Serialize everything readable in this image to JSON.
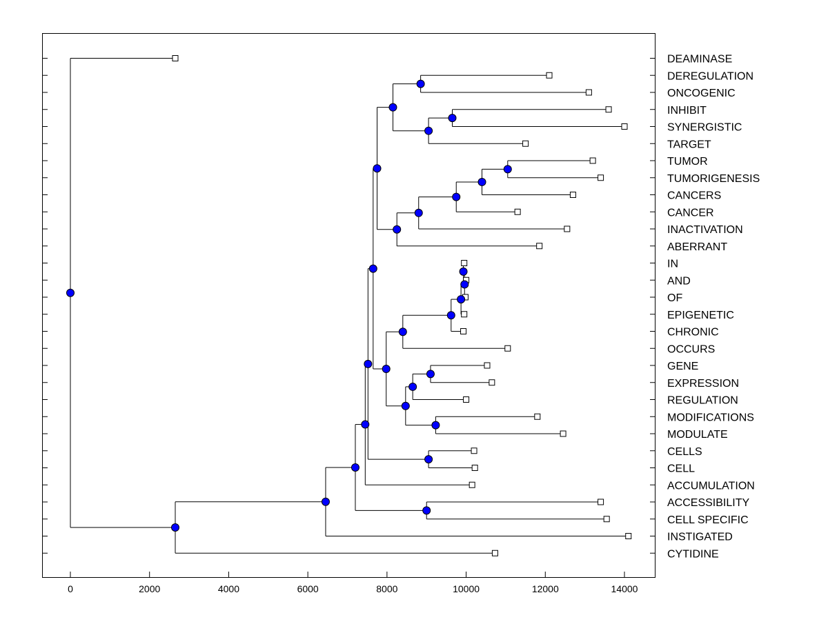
{
  "chart_data": {
    "type": "dendrogram",
    "title": "",
    "xlabel": "",
    "ylabel": "",
    "xlim": [
      -700,
      14800
    ],
    "x_ticks": [
      0,
      2000,
      4000,
      6000,
      8000,
      10000,
      12000,
      14000
    ],
    "x_tick_labels": [
      "0",
      "2000",
      "4000",
      "6000",
      "8000",
      "10000",
      "12000",
      "14000"
    ],
    "grid": false,
    "colors": {
      "node_fill": "#0000ff",
      "leaf_fill": "#ffffff",
      "line": "#000000"
    },
    "leaves": [
      {
        "label": "DEAMINASE",
        "x": 2650
      },
      {
        "label": "DEREGULATION",
        "x": 12100
      },
      {
        "label": "ONCOGENIC",
        "x": 13100
      },
      {
        "label": "INHIBIT",
        "x": 13600
      },
      {
        "label": "SYNERGISTIC",
        "x": 14000
      },
      {
        "label": "TARGET",
        "x": 11500
      },
      {
        "label": "TUMOR",
        "x": 13200
      },
      {
        "label": "TUMORIGENESIS",
        "x": 13400
      },
      {
        "label": "CANCERS",
        "x": 12700
      },
      {
        "label": "CANCER",
        "x": 11300
      },
      {
        "label": "INACTIVATION",
        "x": 12550
      },
      {
        "label": "ABERRANT",
        "x": 11850
      },
      {
        "label": "IN",
        "x": 9950
      },
      {
        "label": "AND",
        "x": 10000
      },
      {
        "label": "OF",
        "x": 9980
      },
      {
        "label": "EPIGENETIC",
        "x": 9950
      },
      {
        "label": "CHRONIC",
        "x": 9930
      },
      {
        "label": "OCCURS",
        "x": 11050
      },
      {
        "label": "GENE",
        "x": 10530
      },
      {
        "label": "EXPRESSION",
        "x": 10650
      },
      {
        "label": "REGULATION",
        "x": 10000
      },
      {
        "label": "MODIFICATIONS",
        "x": 11800
      },
      {
        "label": "MODULATE",
        "x": 12450
      },
      {
        "label": "CELLS",
        "x": 10200
      },
      {
        "label": "CELL",
        "x": 10220
      },
      {
        "label": "ACCUMULATION",
        "x": 10150
      },
      {
        "label": "ACCESSIBILITY",
        "x": 13400
      },
      {
        "label": "CELL SPECIFIC",
        "x": 13550
      },
      {
        "label": "INSTIGATED",
        "x": 14100
      },
      {
        "label": "CYTIDINE",
        "x": 10730
      }
    ],
    "nodes": [
      {
        "id": "n1",
        "x": 8850,
        "children": [
          "L1",
          "L2"
        ]
      },
      {
        "id": "n2",
        "x": 9650,
        "children": [
          "L3",
          "L4"
        ]
      },
      {
        "id": "n3",
        "x": 9050,
        "children": [
          "n2",
          "L5"
        ]
      },
      {
        "id": "n4",
        "x": 8150,
        "children": [
          "n1",
          "n3"
        ]
      },
      {
        "id": "n5",
        "x": 11050,
        "children": [
          "L6",
          "L7"
        ]
      },
      {
        "id": "n6",
        "x": 10400,
        "children": [
          "n5",
          "L8"
        ]
      },
      {
        "id": "n7",
        "x": 9750,
        "children": [
          "n6",
          "L9"
        ]
      },
      {
        "id": "n8",
        "x": 8800,
        "children": [
          "n7",
          "L10"
        ]
      },
      {
        "id": "n9",
        "x": 8250,
        "children": [
          "n8",
          "L11"
        ]
      },
      {
        "id": "n10",
        "x": 7750,
        "children": [
          "n4",
          "n9"
        ]
      },
      {
        "id": "n11",
        "x": 9930,
        "children": [
          "L12",
          "L13"
        ]
      },
      {
        "id": "n12",
        "x": 9960,
        "children": [
          "n11",
          "L14"
        ]
      },
      {
        "id": "n13",
        "x": 9870,
        "children": [
          "n12",
          "L15"
        ]
      },
      {
        "id": "n14",
        "x": 9620,
        "children": [
          "n13",
          "L16"
        ]
      },
      {
        "id": "n15",
        "x": 8400,
        "children": [
          "n14",
          "L17"
        ]
      },
      {
        "id": "n16",
        "x": 9100,
        "children": [
          "L18",
          "L19"
        ]
      },
      {
        "id": "n17",
        "x": 8650,
        "children": [
          "n16",
          "L20"
        ]
      },
      {
        "id": "n18",
        "x": 9230,
        "children": [
          "L21",
          "L22"
        ]
      },
      {
        "id": "n19",
        "x": 8470,
        "children": [
          "n17",
          "n18"
        ]
      },
      {
        "id": "n20",
        "x": 7980,
        "children": [
          "n15",
          "n19"
        ]
      },
      {
        "id": "n21",
        "x": 7650,
        "children": [
          "n10",
          "n20"
        ]
      },
      {
        "id": "n22",
        "x": 9050,
        "children": [
          "L23",
          "L24"
        ]
      },
      {
        "id": "n23",
        "x": 7520,
        "children": [
          "n21",
          "n22"
        ]
      },
      {
        "id": "n24",
        "x": 7450,
        "children": [
          "n23",
          "L25"
        ]
      },
      {
        "id": "n25",
        "x": 9000,
        "children": [
          "L26",
          "L27"
        ]
      },
      {
        "id": "n26",
        "x": 7200,
        "children": [
          "n24",
          "n25"
        ]
      },
      {
        "id": "n27",
        "x": 6450,
        "children": [
          "n26",
          "L28"
        ]
      },
      {
        "id": "n28",
        "x": 2650,
        "children": [
          "n27",
          "L29"
        ]
      },
      {
        "id": "n29",
        "x": 0,
        "children": [
          "L0",
          "n28"
        ]
      }
    ]
  }
}
